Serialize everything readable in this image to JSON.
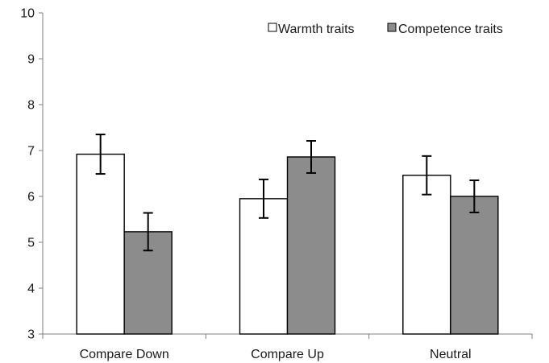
{
  "chart_data": {
    "type": "bar",
    "categories": [
      "Compare Down",
      "Compare Up",
      "Neutral"
    ],
    "series": [
      {
        "name": "Warmth traits",
        "values": [
          6.92,
          5.95,
          6.46
        ],
        "error": [
          0.43,
          0.42,
          0.42
        ],
        "color": "#ffffff"
      },
      {
        "name": "Competence traits",
        "values": [
          5.23,
          6.86,
          6.0
        ],
        "error": [
          0.41,
          0.35,
          0.35
        ],
        "color": "#8c8c8c"
      }
    ],
    "title": "",
    "xlabel": "",
    "ylabel": "",
    "ylim": [
      3,
      10
    ],
    "yticks": [
      "3",
      "4",
      "5",
      "6",
      "7",
      "8",
      "9",
      "10"
    ],
    "grid": false,
    "legend_position": "top-right"
  }
}
